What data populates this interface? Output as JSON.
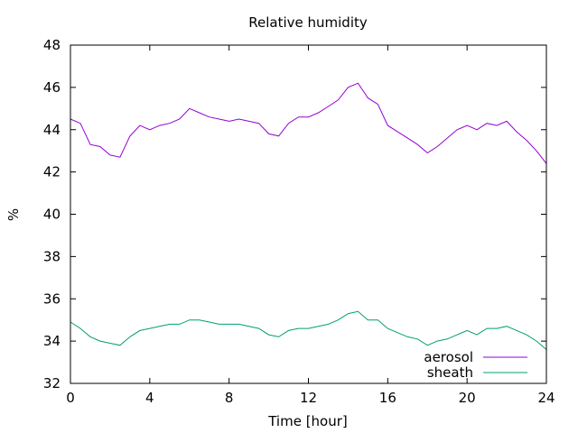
{
  "chart_data": {
    "type": "line",
    "title": "Relative humidity",
    "xlabel": "Time [hour]",
    "ylabel": "%",
    "xlim": [
      0,
      24
    ],
    "ylim": [
      32,
      48
    ],
    "xticks": [
      "0",
      "4",
      "8",
      "12",
      "16",
      "20",
      "24"
    ],
    "yticks": [
      "32",
      "34",
      "36",
      "38",
      "40",
      "42",
      "44",
      "46",
      "48"
    ],
    "grid": false,
    "legend_position": "bottom-right",
    "x": [
      0,
      0.5,
      1,
      1.5,
      2,
      2.5,
      3,
      3.5,
      4,
      4.5,
      5,
      5.5,
      6,
      6.5,
      7,
      7.5,
      8,
      8.5,
      9,
      9.5,
      10,
      10.5,
      11,
      11.5,
      12,
      12.5,
      13,
      13.5,
      14,
      14.5,
      15,
      15.5,
      16,
      16.5,
      17,
      17.5,
      18,
      18.5,
      19,
      19.5,
      20,
      20.5,
      21,
      21.5,
      22,
      22.5,
      23,
      23.5,
      24
    ],
    "series": [
      {
        "name": "aerosol",
        "color": "#9400d3",
        "values": [
          44.5,
          44.3,
          43.3,
          43.2,
          42.8,
          42.7,
          43.7,
          44.2,
          44.0,
          44.2,
          44.3,
          44.5,
          45.0,
          44.8,
          44.6,
          44.5,
          44.4,
          44.5,
          44.4,
          44.3,
          43.8,
          43.7,
          44.3,
          44.6,
          44.6,
          44.8,
          45.1,
          45.4,
          46.0,
          46.2,
          45.5,
          45.2,
          44.2,
          43.9,
          43.6,
          43.3,
          42.9,
          43.2,
          43.6,
          44.0,
          44.2,
          44.0,
          44.3,
          44.2,
          44.4,
          43.9,
          43.5,
          43.0,
          42.4
        ]
      },
      {
        "name": "sheath",
        "color": "#009e73",
        "values": [
          34.9,
          34.6,
          34.2,
          34.0,
          33.9,
          33.8,
          34.2,
          34.5,
          34.6,
          34.7,
          34.8,
          34.8,
          35.0,
          35.0,
          34.9,
          34.8,
          34.8,
          34.8,
          34.7,
          34.6,
          34.3,
          34.2,
          34.5,
          34.6,
          34.6,
          34.7,
          34.8,
          35.0,
          35.3,
          35.4,
          35.0,
          35.0,
          34.6,
          34.4,
          34.2,
          34.1,
          33.8,
          34.0,
          34.1,
          34.3,
          34.5,
          34.3,
          34.6,
          34.6,
          34.7,
          34.5,
          34.3,
          34.0,
          33.6
        ]
      }
    ]
  }
}
